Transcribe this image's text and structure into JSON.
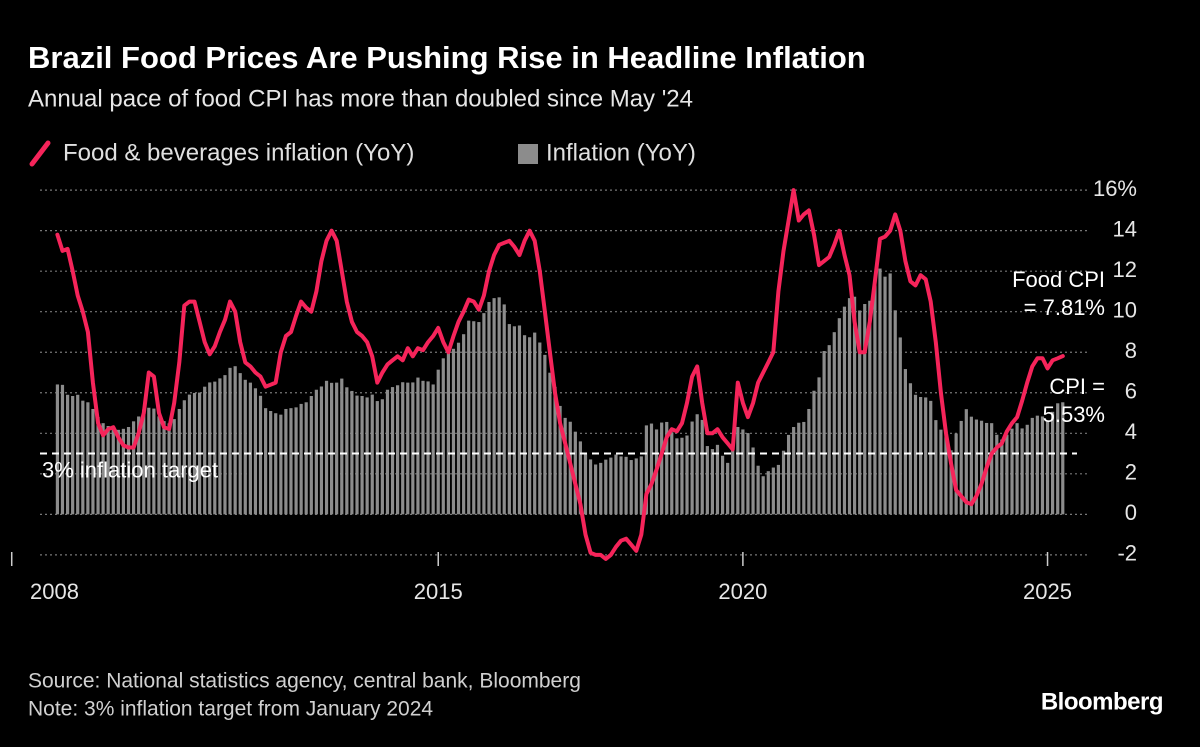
{
  "chart_data": {
    "type": "combo",
    "title": "Brazil Food Prices Are Pushing Rise in Headline Inflation",
    "subtitle": "Annual pace of food CPI has more than doubled since May '24",
    "source": "Source: National statistics agency, central bank, Bloomberg",
    "note": "Note: 3% inflation target from January 2024",
    "brand": "Bloomberg",
    "x": [
      2008.75,
      2008.833,
      2008.917,
      2009,
      2009.083,
      2009.167,
      2009.25,
      2009.333,
      2009.417,
      2009.5,
      2009.583,
      2009.667,
      2009.75,
      2009.833,
      2009.917,
      2010,
      2010.083,
      2010.167,
      2010.25,
      2010.333,
      2010.417,
      2010.5,
      2010.583,
      2010.667,
      2010.75,
      2010.833,
      2010.917,
      2011,
      2011.083,
      2011.167,
      2011.25,
      2011.333,
      2011.417,
      2011.5,
      2011.583,
      2011.667,
      2011.75,
      2011.833,
      2011.917,
      2012,
      2012.083,
      2012.167,
      2012.25,
      2012.333,
      2012.417,
      2012.5,
      2012.583,
      2012.667,
      2012.75,
      2012.833,
      2012.917,
      2013,
      2013.083,
      2013.167,
      2013.25,
      2013.333,
      2013.417,
      2013.5,
      2013.583,
      2013.667,
      2013.75,
      2013.833,
      2013.917,
      2014,
      2014.083,
      2014.167,
      2014.25,
      2014.333,
      2014.417,
      2014.5,
      2014.583,
      2014.667,
      2014.75,
      2014.833,
      2014.917,
      2015,
      2015.083,
      2015.167,
      2015.25,
      2015.333,
      2015.417,
      2015.5,
      2015.583,
      2015.667,
      2015.75,
      2015.833,
      2015.917,
      2016,
      2016.083,
      2016.167,
      2016.25,
      2016.333,
      2016.417,
      2016.5,
      2016.583,
      2016.667,
      2016.75,
      2016.833,
      2016.917,
      2017,
      2017.083,
      2017.167,
      2017.25,
      2017.333,
      2017.417,
      2017.5,
      2017.583,
      2017.667,
      2017.75,
      2017.833,
      2017.917,
      2018,
      2018.083,
      2018.167,
      2018.25,
      2018.333,
      2018.417,
      2018.5,
      2018.583,
      2018.667,
      2018.75,
      2018.833,
      2018.917,
      2019,
      2019.083,
      2019.167,
      2019.25,
      2019.333,
      2019.417,
      2019.5,
      2019.583,
      2019.667,
      2019.75,
      2019.833,
      2019.917,
      2020,
      2020.083,
      2020.167,
      2020.25,
      2020.333,
      2020.417,
      2020.5,
      2020.583,
      2020.667,
      2020.75,
      2020.833,
      2020.917,
      2021,
      2021.083,
      2021.167,
      2021.25,
      2021.333,
      2021.417,
      2021.5,
      2021.583,
      2021.667,
      2021.75,
      2021.833,
      2021.917,
      2022,
      2022.083,
      2022.167,
      2022.25,
      2022.333,
      2022.417,
      2022.5,
      2022.583,
      2022.667,
      2022.75,
      2022.833,
      2022.917,
      2023,
      2023.083,
      2023.167,
      2023.25,
      2023.333,
      2023.417,
      2023.5,
      2023.583,
      2023.667,
      2023.75,
      2023.833,
      2023.917,
      2024,
      2024.083,
      2024.167,
      2024.25,
      2024.333,
      2024.417,
      2024.5,
      2024.583,
      2024.667,
      2024.75,
      2024.833,
      2024.917,
      2025,
      2025.083,
      2025.167,
      2025.25
    ],
    "series": [
      {
        "name": "Food & beverages inflation (YoY)",
        "type": "line",
        "color": "#f5245a",
        "values": [
          13.8,
          13.0,
          13.1,
          12.0,
          10.8,
          10.0,
          9.0,
          6.5,
          4.5,
          3.9,
          4.2,
          4.3,
          3.8,
          3.4,
          3.3,
          3.3,
          4.0,
          5.0,
          7.0,
          6.8,
          5.0,
          4.3,
          4.2,
          5.5,
          7.5,
          10.3,
          10.5,
          10.5,
          9.5,
          8.5,
          7.9,
          8.3,
          9.0,
          9.6,
          10.5,
          10.0,
          8.5,
          7.5,
          7.3,
          7.0,
          6.8,
          6.3,
          6.4,
          6.5,
          8.0,
          8.8,
          9.0,
          9.8,
          10.5,
          10.2,
          10.0,
          11.0,
          12.5,
          13.5,
          14.0,
          13.5,
          12.0,
          10.5,
          9.5,
          9.0,
          8.8,
          8.5,
          7.8,
          6.5,
          7.0,
          7.4,
          7.6,
          7.8,
          7.6,
          8.2,
          7.8,
          8.2,
          8.1,
          8.5,
          8.8,
          9.2,
          8.5,
          8.0,
          8.8,
          9.5,
          10.0,
          10.6,
          10.5,
          10.1,
          10.8,
          12.0,
          12.8,
          13.3,
          13.4,
          13.5,
          13.2,
          12.8,
          13.5,
          14.0,
          13.5,
          12.0,
          10.0,
          8.0,
          6.0,
          4.5,
          3.5,
          2.5,
          1.5,
          0.5,
          -1.0,
          -1.9,
          -2.0,
          -2.0,
          -2.2,
          -2.0,
          -1.6,
          -1.3,
          -1.2,
          -1.5,
          -1.8,
          -1.0,
          1.0,
          1.5,
          2.2,
          3.0,
          3.8,
          4.2,
          4.1,
          4.5,
          5.5,
          6.8,
          7.3,
          5.5,
          4.0,
          4.0,
          4.2,
          3.8,
          3.5,
          3.2,
          6.5,
          5.5,
          4.8,
          5.5,
          6.5,
          7.0,
          7.5,
          8.0,
          11.0,
          13.0,
          14.5,
          16.0,
          14.5,
          14.8,
          15.0,
          13.8,
          12.3,
          12.5,
          12.7,
          13.3,
          14.0,
          12.8,
          11.8,
          9.5,
          8.0,
          8.0,
          9.5,
          11.5,
          13.6,
          13.7,
          14.0,
          14.8,
          14.0,
          12.5,
          11.5,
          11.3,
          11.8,
          11.6,
          10.5,
          8.5,
          6.0,
          4.0,
          2.5,
          1.2,
          0.9,
          0.6,
          0.5,
          0.9,
          1.5,
          2.3,
          3.0,
          3.3,
          3.5,
          4.1,
          4.5,
          4.8,
          5.6,
          6.5,
          7.3,
          7.7,
          7.7,
          7.2,
          7.6,
          7.7,
          7.81
        ]
      },
      {
        "name": "Inflation (YoY)",
        "type": "bar",
        "color": "#8c8c8c",
        "values": [
          6.41,
          6.39,
          5.9,
          5.84,
          5.9,
          5.61,
          5.53,
          5.2,
          4.8,
          4.5,
          4.36,
          4.34,
          4.17,
          4.22,
          4.31,
          4.59,
          4.83,
          5.17,
          5.26,
          5.22,
          4.84,
          4.6,
          4.49,
          4.7,
          5.2,
          5.63,
          5.91,
          5.99,
          6.01,
          6.3,
          6.51,
          6.55,
          6.71,
          6.87,
          7.23,
          7.31,
          6.97,
          6.64,
          6.5,
          6.22,
          5.85,
          5.24,
          5.1,
          4.99,
          4.92,
          5.2,
          5.24,
          5.28,
          5.45,
          5.53,
          5.84,
          6.15,
          6.31,
          6.59,
          6.49,
          6.5,
          6.7,
          6.27,
          6.09,
          5.86,
          5.84,
          5.77,
          5.91,
          5.59,
          5.68,
          6.15,
          6.28,
          6.37,
          6.52,
          6.5,
          6.51,
          6.75,
          6.59,
          6.56,
          6.41,
          7.14,
          7.7,
          8.13,
          8.17,
          8.47,
          8.89,
          9.56,
          9.53,
          9.49,
          9.93,
          10.48,
          10.67,
          10.71,
          10.36,
          9.39,
          9.28,
          9.32,
          8.84,
          8.74,
          8.97,
          8.48,
          7.87,
          6.99,
          6.29,
          5.35,
          4.76,
          4.57,
          4.08,
          3.6,
          3.0,
          2.71,
          2.46,
          2.54,
          2.7,
          2.8,
          2.95,
          2.86,
          2.84,
          2.68,
          2.76,
          2.86,
          4.39,
          4.48,
          4.19,
          4.53,
          4.56,
          4.05,
          3.75,
          3.78,
          3.89,
          4.58,
          4.94,
          4.66,
          3.37,
          3.22,
          3.43,
          2.89,
          2.54,
          3.27,
          4.31,
          4.19,
          4.01,
          3.3,
          2.4,
          1.88,
          2.13,
          2.31,
          2.44,
          3.14,
          3.92,
          4.31,
          4.52,
          4.56,
          5.2,
          6.1,
          6.76,
          8.06,
          8.35,
          8.99,
          9.68,
          10.25,
          10.67,
          10.74,
          10.06,
          10.38,
          10.54,
          11.3,
          12.13,
          11.73,
          11.89,
          10.07,
          8.73,
          7.17,
          6.47,
          5.9,
          5.79,
          5.77,
          5.6,
          4.65,
          4.18,
          3.94,
          3.16,
          3.99,
          4.61,
          5.19,
          4.82,
          4.68,
          4.62,
          4.51,
          4.5,
          3.93,
          3.69,
          3.93,
          4.23,
          4.5,
          4.24,
          4.42,
          4.76,
          4.87,
          4.83,
          4.56,
          5.06,
          5.48,
          5.53
        ]
      }
    ],
    "xlim": [
      2008.3,
      2025.5
    ],
    "xticks": [
      2008,
      2015,
      2020,
      2025
    ],
    "ylim": [
      -2.5,
      16.5
    ],
    "yticks": [
      -2,
      0,
      2,
      4,
      6,
      8,
      10,
      12,
      14,
      {
        "value": 16,
        "label": "16%"
      }
    ],
    "grid": true,
    "target": {
      "value": 3,
      "label": "3% inflation target"
    },
    "annotations": [
      {
        "lines": [
          "Food CPI",
          "= 7.81%"
        ],
        "series": 0
      },
      {
        "lines": [
          "CPI =",
          "5.53%"
        ],
        "series": 1
      }
    ]
  }
}
